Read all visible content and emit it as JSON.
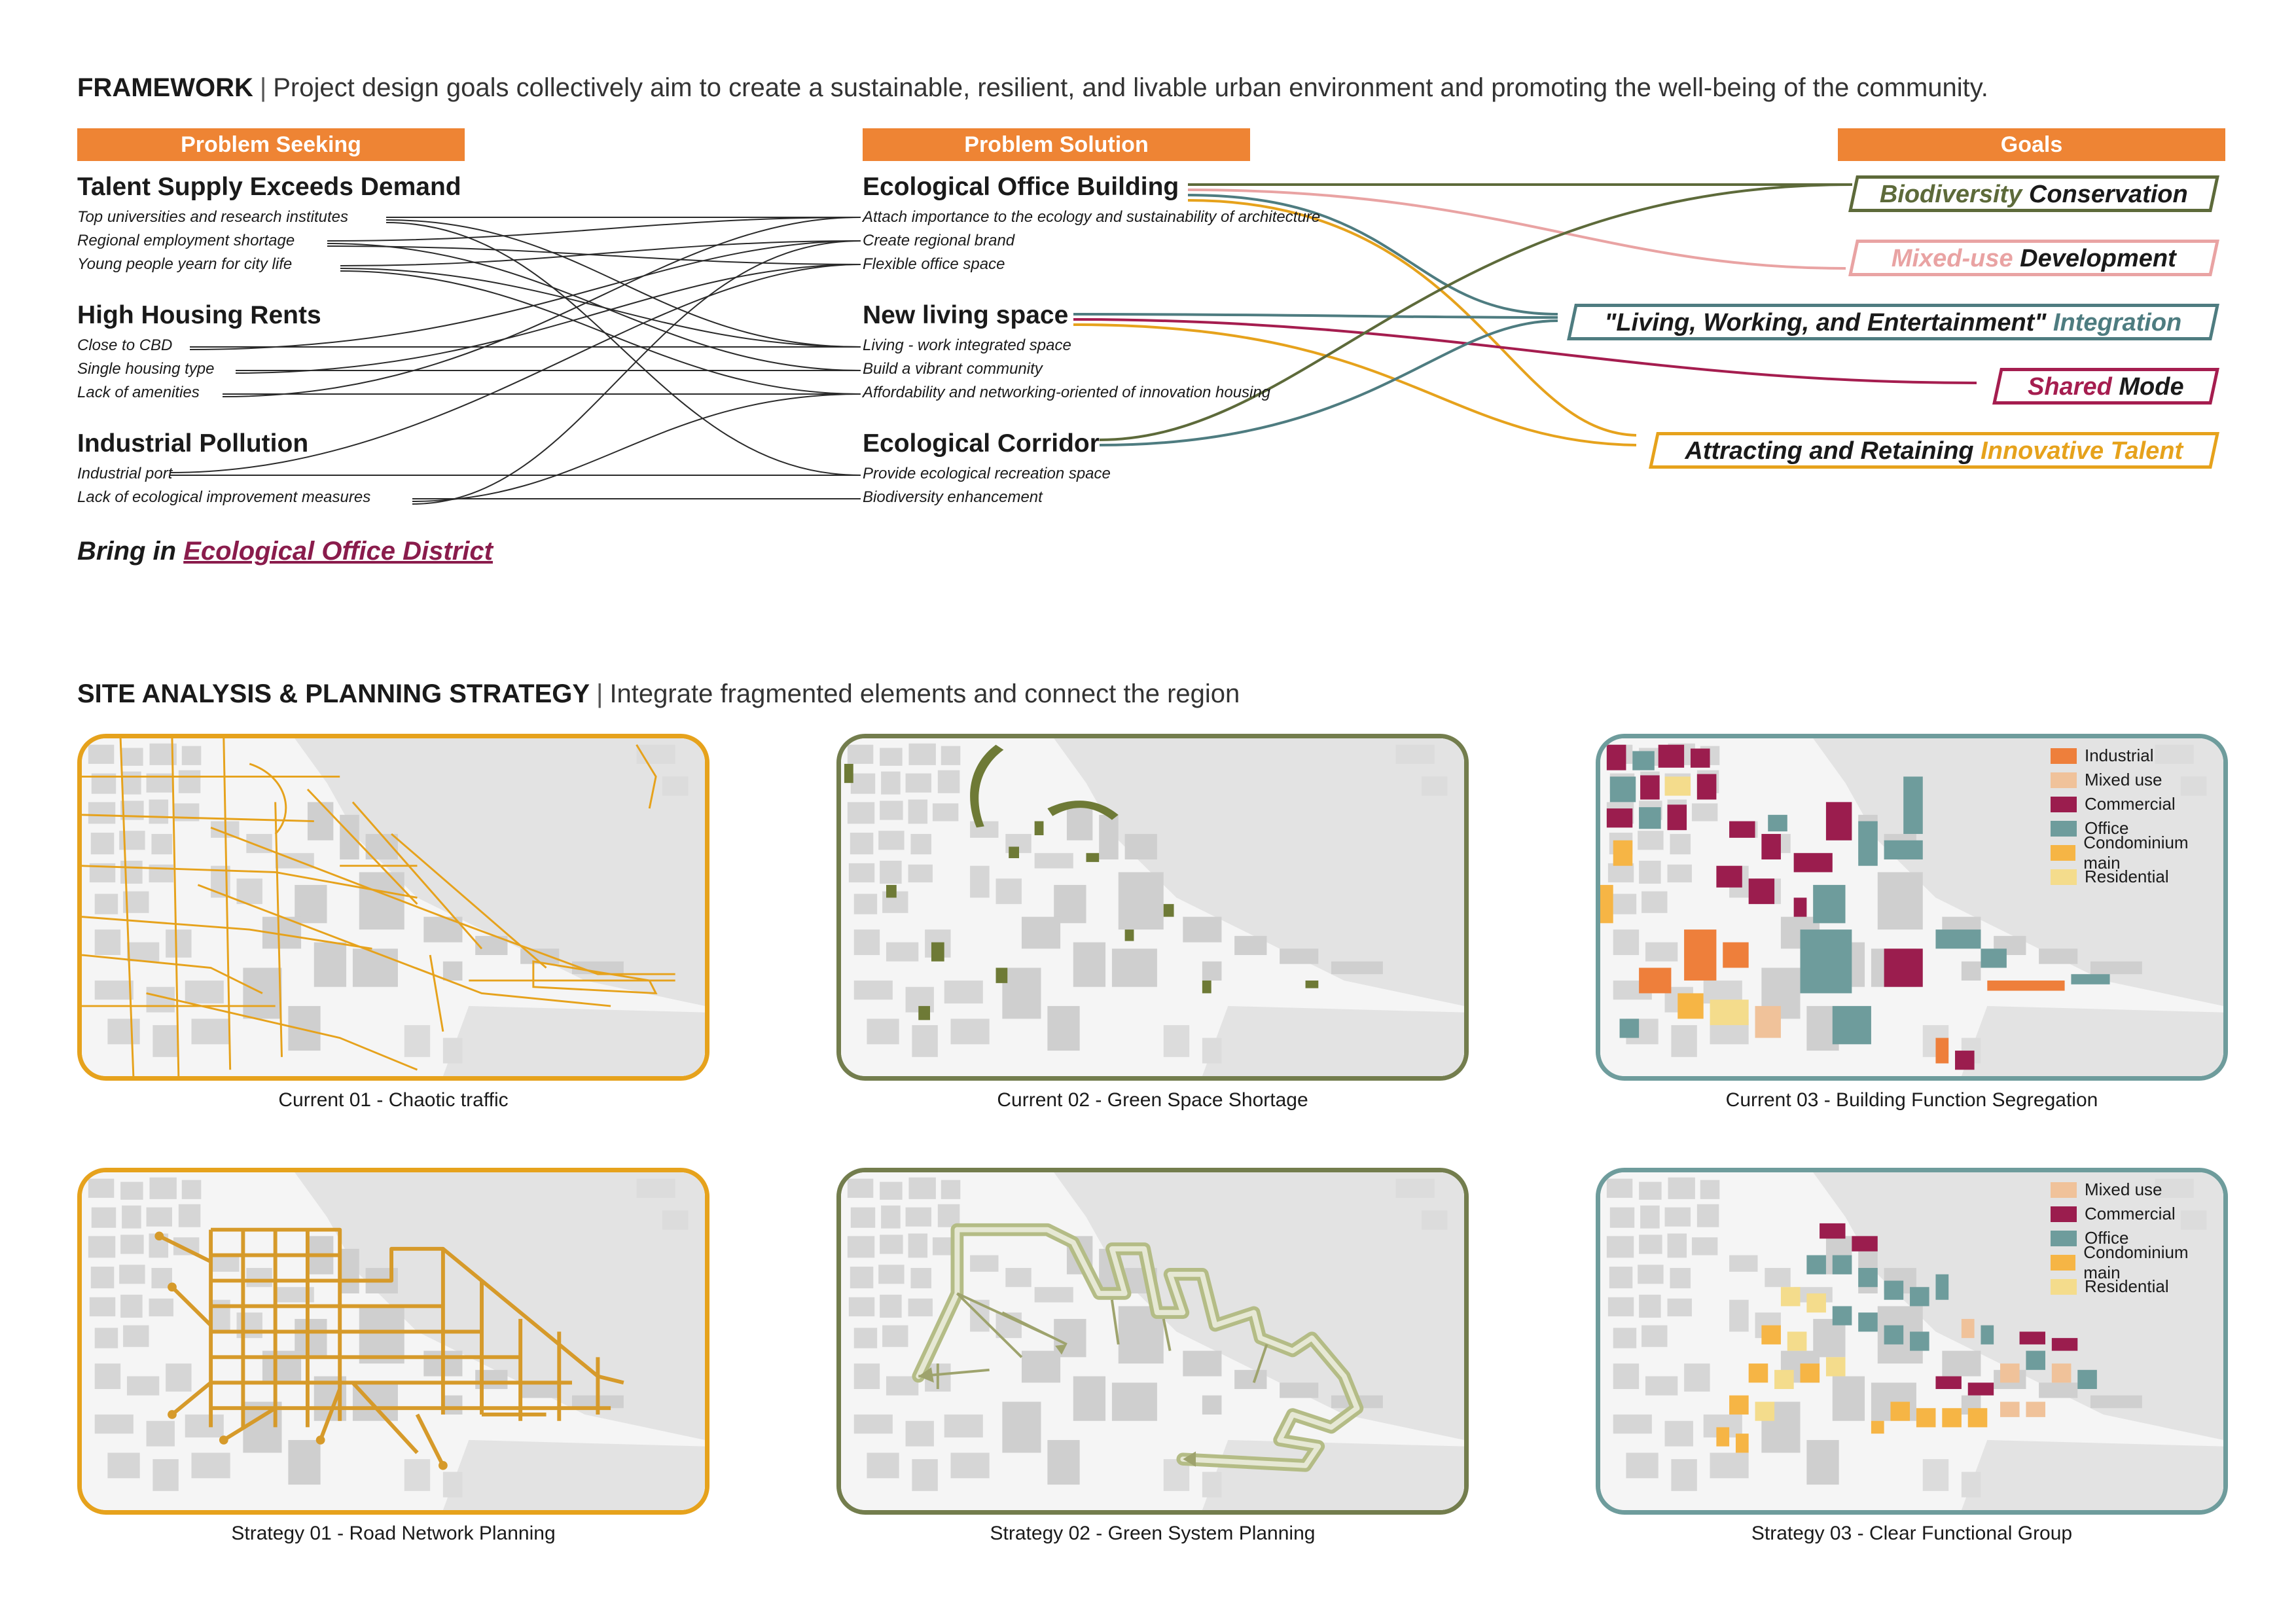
{
  "framework": {
    "title": "FRAMEWORK",
    "subtitle": "Project design goals collectively aim to create a sustainable, resilient, and livable urban environment and promoting the well-being of the community."
  },
  "columns": {
    "seeking": "Problem Seeking",
    "solution": "Problem Solution",
    "goals": "Goals"
  },
  "problems": [
    {
      "title": "Talent Supply Exceeds Demand",
      "items": [
        "Top universities and research institutes",
        "Regional employment shortage",
        "Young people yearn for city life"
      ]
    },
    {
      "title": "High Housing Rents",
      "items": [
        "Close to CBD",
        "Single housing type",
        "Lack of amenities"
      ]
    },
    {
      "title": "Industrial Pollution",
      "items": [
        "Industrial port",
        "Lack of ecological improvement measures"
      ]
    }
  ],
  "solutions": [
    {
      "title": "Ecological Office Building",
      "items": [
        "Attach importance to the ecology and sustainability of architecture",
        "Create regional brand",
        "Flexible office space"
      ]
    },
    {
      "title": "New living space",
      "items": [
        "Living - work integrated space",
        "Build a vibrant community",
        "Affordability and networking-oriented of innovation housing"
      ]
    },
    {
      "title": "Ecological Corridor",
      "items": [
        "Provide ecological recreation space",
        "Biodiversity enhancement"
      ]
    }
  ],
  "goals": [
    {
      "a": "Biodiversity",
      "b": " Conservation",
      "border": "#5d6a3a",
      "ca": "#5d6a3a",
      "cb": "#1a1a1a"
    },
    {
      "a": "Mixed-use",
      "b": " Development",
      "border": "#e9a3a3",
      "ca": "#e9a3a3",
      "cb": "#1a1a1a"
    },
    {
      "a": "\"Living, Working, and Entertainment\"",
      "b": " Integration",
      "border": "#4e7c80",
      "ca": "#1a1a1a",
      "cb": "#4e7c80"
    },
    {
      "a": "Shared",
      "b": " Mode",
      "border": "#a51d4f",
      "ca": "#a51d4f",
      "cb": "#1a1a1a"
    },
    {
      "a": "Attracting and Retaining",
      "b": " Innovative Talent",
      "border": "#e6a21c",
      "ca": "#1a1a1a",
      "cb": "#e6a21c"
    }
  ],
  "bring": {
    "prefix": "Bring in ",
    "highlight": "Ecological Office District"
  },
  "site": {
    "title": "SITE ANALYSIS & PLANNING STRATEGY",
    "subtitle": "Integrate fragmented elements and connect the region"
  },
  "maps": [
    {
      "caption": "Current 01 - Chaotic traffic",
      "color": "#e6a21c"
    },
    {
      "caption": "Current 02 - Green Space Shortage",
      "color": "#737d4d"
    },
    {
      "caption": "Current 03 - Building Function Segregation",
      "color": "#6e9c9c"
    },
    {
      "caption": "Strategy 01 - Road Network Planning",
      "color": "#e6a21c"
    },
    {
      "caption": "Strategy 02 - Green System Planning",
      "color": "#737d4d"
    },
    {
      "caption": "Strategy 03 - Clear Functional Group",
      "color": "#6e9c9c"
    }
  ],
  "legend_current": [
    {
      "label": "Industrial",
      "color": "#ee7f3b"
    },
    {
      "label": "Mixed use",
      "color": "#f0c29a"
    },
    {
      "label": "Commercial",
      "color": "#9b1d4e"
    },
    {
      "label": "Office",
      "color": "#6e9c9c"
    },
    {
      "label": "Condominium main",
      "color": "#f6b545"
    },
    {
      "label": "Residential",
      "color": "#f4dc8c"
    }
  ],
  "legend_strategy": [
    {
      "label": "Mixed use",
      "color": "#f0c29a"
    },
    {
      "label": "Commercial",
      "color": "#9b1d4e"
    },
    {
      "label": "Office",
      "color": "#6e9c9c"
    },
    {
      "label": "Condominium main",
      "color": "#f6b545"
    },
    {
      "label": "Residential",
      "color": "#f4dc8c"
    }
  ]
}
